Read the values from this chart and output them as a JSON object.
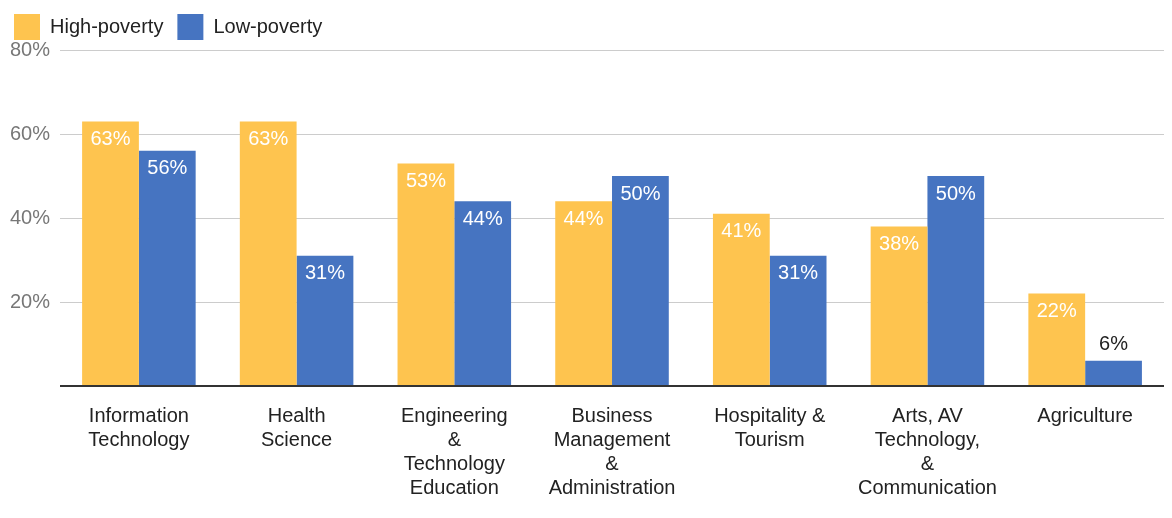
{
  "chart_data": {
    "type": "bar",
    "categories": [
      "Information Technology",
      "Health Science",
      "Engineering & Technology Education",
      "Business Management & Administration",
      "Hospitality & Tourism",
      "Arts, AV Technology, & Communication",
      "Agriculture"
    ],
    "series": [
      {
        "name": "High-poverty",
        "color": "#fec44f",
        "values": [
          63,
          63,
          53,
          44,
          41,
          38,
          22
        ],
        "value_labels": [
          "63%",
          "63%",
          "53%",
          "44%",
          "41%",
          "38%",
          "22%"
        ]
      },
      {
        "name": "Low-poverty",
        "color": "#4674c1",
        "values": [
          56,
          31,
          44,
          50,
          31,
          50,
          6
        ],
        "value_labels": [
          "56%",
          "31%",
          "44%",
          "50%",
          "31%",
          "50%",
          "6%"
        ]
      }
    ],
    "ylim": [
      0,
      80
    ],
    "yticks": [
      {
        "value": 0,
        "label": null
      },
      {
        "value": 20,
        "label": "20%"
      },
      {
        "value": 40,
        "label": "40%"
      },
      {
        "value": 60,
        "label": "60%"
      },
      {
        "value": 80,
        "label": "80%"
      }
    ],
    "grid": "y",
    "legend": "top left"
  }
}
